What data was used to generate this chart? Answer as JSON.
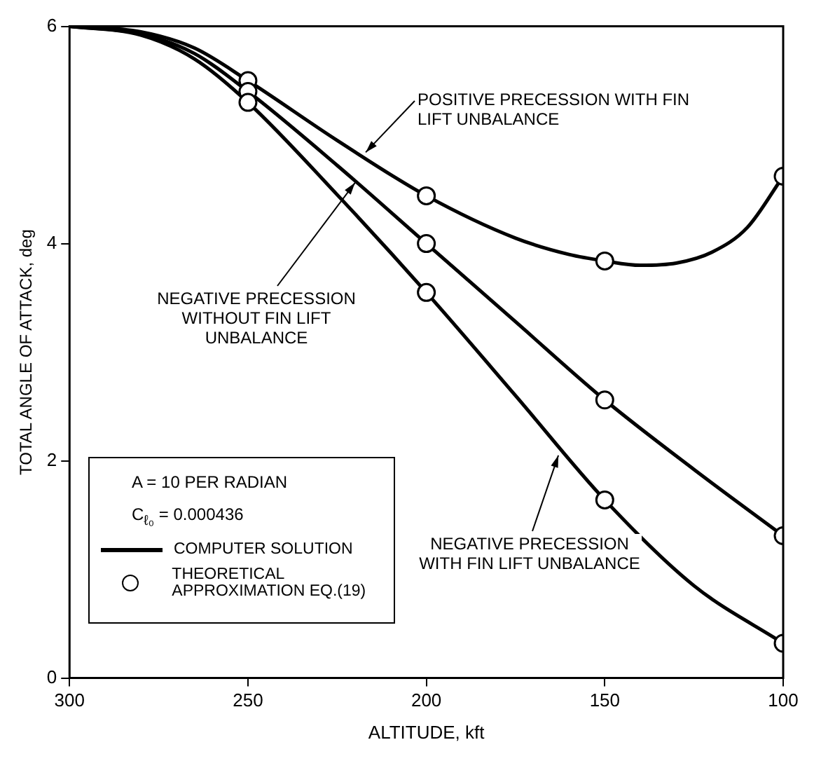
{
  "chart_data": {
    "type": "line",
    "xlabel": "ALTITUDE, kft",
    "ylabel": "TOTAL ANGLE OF ATTACK, deg",
    "xlim": [
      300,
      100
    ],
    "xticks": [
      300,
      250,
      200,
      150,
      100
    ],
    "ylim": [
      0,
      6
    ],
    "yticks": [
      0,
      2,
      4,
      6
    ],
    "grid": false,
    "legend": "bottom left",
    "line_style": "solid",
    "series": [
      {
        "name": "COMPUTER SOLUTION",
        "color": "#000000",
        "marker": "none",
        "x": [
          300,
          280,
          265,
          250,
          225,
          200,
          175,
          160,
          150,
          140,
          130,
          120,
          110,
          100
        ],
        "values": [
          6,
          5.95,
          5.8,
          5.5,
          4.95,
          4.44,
          4.05,
          3.9,
          3.84,
          3.8,
          3.82,
          3.92,
          4.15,
          4.62
        ]
      },
      {
        "color": "#000000",
        "marker": "none",
        "x": [
          300,
          280,
          265,
          250,
          225,
          200,
          175,
          150,
          125,
          100
        ],
        "values": [
          6,
          5.93,
          5.75,
          5.4,
          4.72,
          4.0,
          3.28,
          2.56,
          1.92,
          1.31
        ]
      },
      {
        "color": "#000000",
        "marker": "none",
        "x": [
          300,
          280,
          265,
          250,
          225,
          200,
          175,
          150,
          125,
          100
        ],
        "values": [
          6,
          5.92,
          5.7,
          5.3,
          4.45,
          3.55,
          2.6,
          1.64,
          0.85,
          0.32
        ]
      },
      {
        "name": "THEORETICAL APPROXIMATION EQ.(19)",
        "type": "scatter",
        "color": "#000000",
        "marker": "circle",
        "x": [
          250,
          250,
          250,
          200,
          200,
          200,
          150,
          150,
          150,
          100,
          100,
          100
        ],
        "values": [
          5.5,
          5.4,
          5.3,
          4.44,
          4.0,
          3.55,
          3.84,
          2.56,
          1.64,
          4.62,
          1.31,
          0.32
        ]
      }
    ],
    "annotations": [
      {
        "text": "POSITIVE PRECESSION WITH FIN LIFT UNBALANCE",
        "x": 217,
        "y": 4.84
      },
      {
        "text": "NEGATIVE PRECESSION WITHOUT FIN LIFT UNBALANCE",
        "x": 220,
        "y": 4.56
      },
      {
        "text": "NEGATIVE PRECESSION WITH FIN LIFT UNBALANCE",
        "x": 163,
        "y": 2.05
      },
      "A = 10 PER RADIAN",
      "C$_{ℓ₀}$ = 0.000436"
    ]
  }
}
